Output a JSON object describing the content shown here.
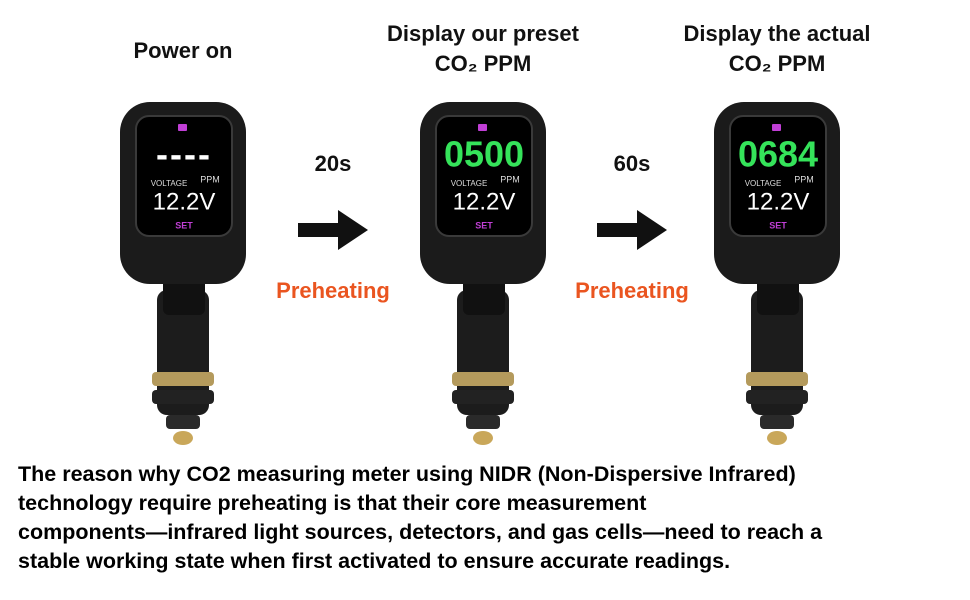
{
  "steps": [
    {
      "title": [
        "Power on"
      ],
      "display": {
        "reading": "----",
        "voltage_label": "VOLTAGE",
        "ppm_label": "PPM",
        "voltage": "12.2V",
        "button": "SET"
      }
    },
    {
      "title": [
        "Display our preset",
        "CO₂ PPM"
      ],
      "display": {
        "reading": "0500",
        "voltage_label": "VOLTAGE",
        "ppm_label": "PPM",
        "voltage": "12.2V",
        "button": "SET"
      }
    },
    {
      "title": [
        "Display the actual",
        "CO₂ PPM"
      ],
      "display": {
        "reading": "0684",
        "voltage_label": "VOLTAGE",
        "ppm_label": "PPM",
        "voltage": "12.2V",
        "button": "SET"
      }
    }
  ],
  "transitions": [
    {
      "time": "20s",
      "label": "Preheating"
    },
    {
      "time": "60s",
      "label": "Preheating"
    }
  ],
  "description": [
    "The reason why CO2 measuring meter using NIDR (Non-Dispersive Infrared)",
    "technology require preheating is that their core measurement",
    "components—infrared light sources, detectors, and gas cells—need to reach a",
    "stable working state when first activated to ensure accurate readings."
  ]
}
